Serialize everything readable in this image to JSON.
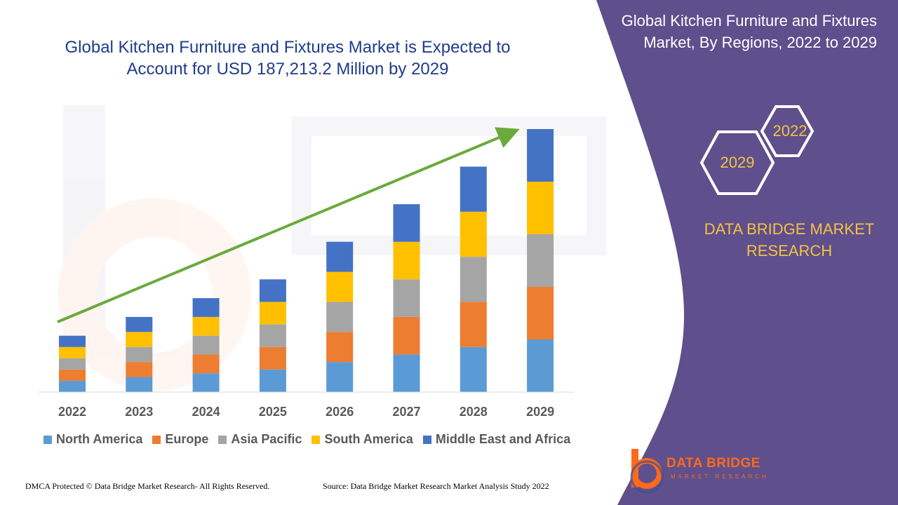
{
  "chart_title": "Global Kitchen Furniture and Fixtures Market is Expected to Account for USD 187,213.2 Million by 2029",
  "panel_title": "Global Kitchen Furniture and Fixtures Market, By Regions, 2022 to 2029",
  "hex_labels": {
    "start": "2022",
    "end": "2029"
  },
  "brand_name": "DATA BRIDGE MARKET RESEARCH",
  "logo": {
    "name": "DATA BRIDGE",
    "sub": "MARKET RESEARCH"
  },
  "footer": {
    "left": "DMCA Protected © Data Bridge Market Research- All Rights Reserved.",
    "right": "Source: Data Bridge Market Research Market Analysis Study 2022"
  },
  "colors": {
    "panel": "#5f4f8c",
    "accent_text": "#f5c242",
    "title_text": "#1f3c8c",
    "trend_arrow": "#6aaa3c",
    "logo_orange": "#ff6a1a"
  },
  "chart_data": {
    "type": "bar",
    "stacked": true,
    "categories": [
      "2022",
      "2023",
      "2024",
      "2025",
      "2026",
      "2027",
      "2028",
      "2029"
    ],
    "series": [
      {
        "name": "North America",
        "color": "#5b9bd5",
        "values": [
          1.5,
          2.0,
          2.5,
          3.0,
          4.0,
          5.0,
          6.0,
          7.0
        ]
      },
      {
        "name": "Europe",
        "color": "#ed7d31",
        "values": [
          1.5,
          2.0,
          2.5,
          3.0,
          4.0,
          5.0,
          6.0,
          7.0
        ]
      },
      {
        "name": "Asia Pacific",
        "color": "#a5a5a5",
        "values": [
          1.5,
          2.0,
          2.5,
          3.0,
          4.0,
          5.0,
          6.0,
          7.0
        ]
      },
      {
        "name": "South America",
        "color": "#ffc000",
        "values": [
          1.5,
          2.0,
          2.5,
          3.0,
          4.0,
          5.0,
          6.0,
          7.0
        ]
      },
      {
        "name": "Middle East and Africa",
        "color": "#4472c4",
        "values": [
          1.5,
          2.0,
          2.5,
          3.0,
          4.0,
          5.0,
          6.0,
          7.0
        ]
      }
    ],
    "ylim": [
      0,
      35
    ],
    "grid": false,
    "legend": "bottom",
    "trend_arrow": true
  }
}
